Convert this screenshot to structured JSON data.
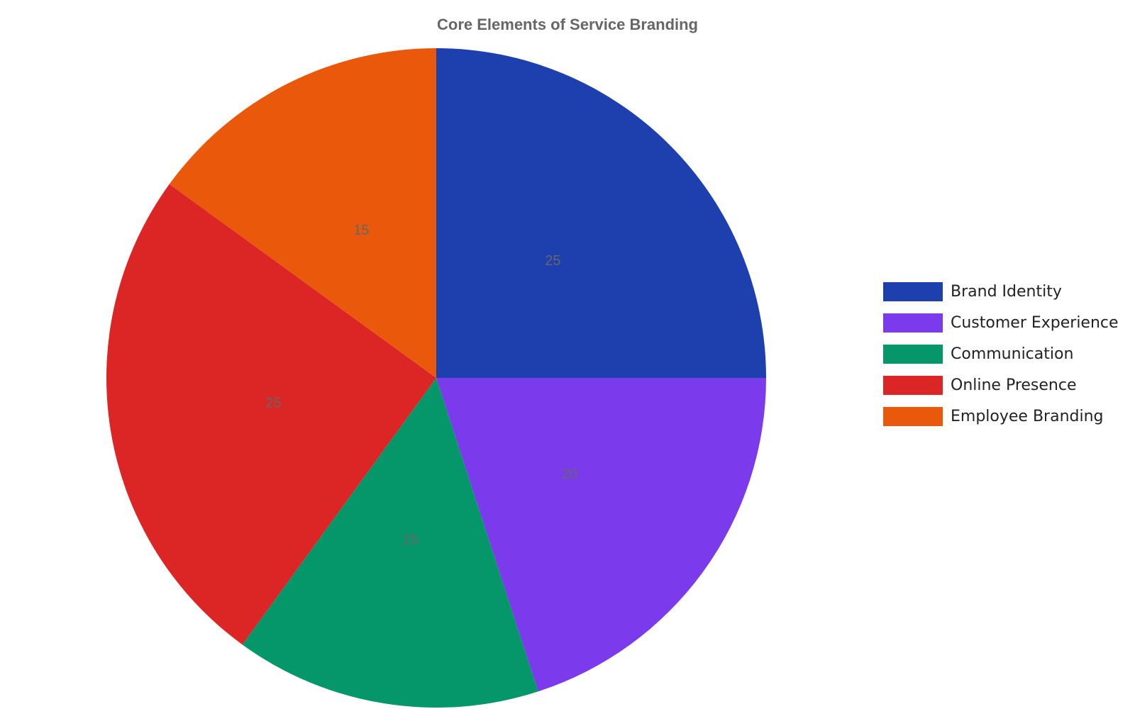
{
  "chart_data": {
    "type": "pie",
    "title": "Core Elements of Service Branding",
    "categories": [
      "Brand Identity",
      "Customer Experience",
      "Communication",
      "Online Presence",
      "Employee Branding"
    ],
    "values": [
      25,
      20,
      15,
      25,
      15
    ],
    "colors": [
      "#1e40af",
      "#7c3aed",
      "#059669",
      "#dc2626",
      "#ea580c"
    ],
    "legend": "right"
  }
}
